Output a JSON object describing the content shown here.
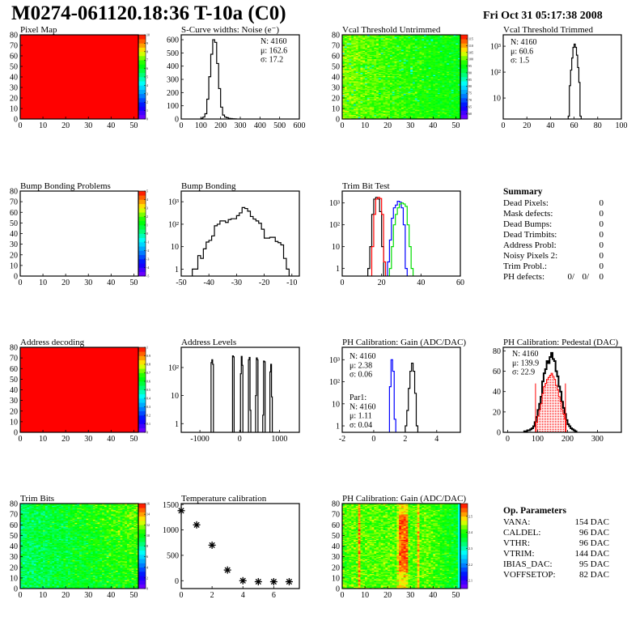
{
  "header": {
    "title": "M0274-061120.18:36 T-10a (C0)",
    "date": "Fri Oct 31 05:17:38 2008"
  },
  "summary": {
    "title": "Summary",
    "rows": [
      {
        "label": "Dead Pixels:",
        "value": "0"
      },
      {
        "label": "Mask defects:",
        "value": "0"
      },
      {
        "label": "Dead Bumps:",
        "value": "0"
      },
      {
        "label": "Dead Trimbits:",
        "value": "0"
      },
      {
        "label": "Address Probl:",
        "value": "0"
      },
      {
        "label": "Noisy Pixels 2:",
        "value": "0"
      },
      {
        "label": "Trim Probl.:",
        "value": "0"
      }
    ],
    "ph_defects": {
      "label": "PH defects:",
      "values": [
        {
          "text": "0/",
          "color": "#000000"
        },
        {
          "text": "0/",
          "color": "#ff0000"
        },
        {
          "text": "0",
          "color": "#0000ff"
        }
      ]
    }
  },
  "op_parameters": {
    "title": "Op. Parameters",
    "rows": [
      {
        "label": "VANA:",
        "value": "154 DAC"
      },
      {
        "label": "CALDEL:",
        "value": "96 DAC"
      },
      {
        "label": "VTHR:",
        "value": "96 DAC"
      },
      {
        "label": "VTRIM:",
        "value": "144 DAC"
      },
      {
        "label": "IBIAS_DAC:",
        "value": "95 DAC"
      },
      {
        "label": "VOFFSETOP:",
        "value": "82 DAC"
      }
    ]
  },
  "chart_data": [
    {
      "type": "heatmap",
      "title": "Pixel Map",
      "xlim": [
        0,
        52
      ],
      "ylim": [
        0,
        80
      ],
      "xticks": [
        0,
        10,
        20,
        30,
        40,
        50
      ],
      "yticks": [
        0,
        10,
        20,
        30,
        40,
        50,
        60,
        70,
        80
      ],
      "zlim": [
        0,
        10
      ],
      "zticks": [
        0,
        1,
        2,
        3,
        4,
        5,
        6,
        7,
        8,
        9,
        10
      ],
      "fill": "uniform",
      "value": 10
    },
    {
      "type": "bar",
      "title": "S-Curve widths: Noise (e⁻)",
      "xlim": [
        0,
        600
      ],
      "ylim": [
        0,
        637
      ],
      "xticks": [
        0,
        100,
        200,
        300,
        400,
        500,
        600
      ],
      "yticks": [
        0,
        100,
        200,
        300,
        400,
        500,
        600
      ],
      "series": [
        {
          "color": "#000000",
          "bin_start": 100,
          "bin_width": 10,
          "values": [
            5,
            15,
            40,
            150,
            320,
            490,
            600,
            580,
            420,
            230,
            90,
            30,
            15,
            10,
            5,
            3,
            2,
            1
          ]
        }
      ],
      "stats": [
        {
          "text": "N: 4160",
          "color": "#000000"
        },
        {
          "text": "μ: 162.6",
          "color": "#000000"
        },
        {
          "text": "σ: 17.2",
          "color": "#000000"
        }
      ]
    },
    {
      "type": "heatmap",
      "title": "Vcal Threshold Untrimmed",
      "xlim": [
        0,
        52
      ],
      "ylim": [
        0,
        80
      ],
      "xticks": [
        0,
        10,
        20,
        30,
        40,
        50
      ],
      "yticks": [
        0,
        10,
        20,
        30,
        40,
        50,
        60,
        70,
        80
      ],
      "zlim": [
        56,
        118
      ],
      "zticks": [
        60,
        65,
        70,
        75,
        80,
        85,
        90,
        95,
        100,
        105,
        110,
        115
      ],
      "fill": "noise"
    },
    {
      "type": "bar",
      "title": "Vcal Threshold Trimmed",
      "log_y": true,
      "xlim": [
        0,
        100
      ],
      "ylim": [
        1.55,
        2750
      ],
      "xticks": [
        0,
        20,
        40,
        60,
        80,
        100
      ],
      "yticks": [
        10,
        100,
        1000
      ],
      "ytick_labels": [
        "10",
        "10²",
        "10³"
      ],
      "series": [
        {
          "color": "#000000",
          "bin_start": 55,
          "bin_width": 1,
          "values": [
            2,
            30,
            120,
            350,
            900,
            1200,
            900,
            450,
            150,
            40,
            2
          ]
        }
      ],
      "stats": [
        {
          "text": "N: 4160",
          "color": "#000000"
        },
        {
          "text": "μ: 60.6",
          "color": "#000000"
        },
        {
          "text": "σ:  1.5",
          "color": "#000000"
        }
      ]
    },
    {
      "type": "heatmap",
      "title": "Bump Bonding Problems",
      "xlim": [
        0,
        52
      ],
      "ylim": [
        0,
        80
      ],
      "xticks": [
        0,
        10,
        20,
        30,
        40,
        50
      ],
      "yticks": [
        0,
        10,
        20,
        30,
        40,
        50,
        60,
        70,
        80
      ],
      "zlim": [
        -5,
        5
      ],
      "zticks": [
        -5,
        -4,
        -3,
        -2,
        -1,
        0,
        1,
        2,
        3,
        4,
        5
      ],
      "fill": "empty"
    },
    {
      "type": "bar",
      "title": "Bump Bonding",
      "log_y": true,
      "xlim": [
        -50,
        -7.3
      ],
      "ylim": [
        0.49,
        2990
      ],
      "xticks": [
        -50,
        -40,
        -30,
        -20,
        -10
      ],
      "yticks": [
        1,
        10,
        100,
        1000
      ],
      "ytick_labels": [
        "1",
        "10",
        "10²",
        "10³"
      ],
      "series": [
        {
          "color": "#000000",
          "bin_start": -46,
          "bin_width": 1,
          "values": [
            1,
            1,
            4,
            3,
            8,
            16,
            19,
            30,
            85,
            100,
            140,
            140,
            120,
            160,
            175,
            175,
            240,
            320,
            550,
            500,
            380,
            220,
            170,
            140,
            110,
            60,
            24,
            24,
            26,
            26,
            17,
            15,
            12,
            3,
            1
          ]
        }
      ]
    },
    {
      "type": "bar",
      "title": "Trim Bit Test",
      "log_y": true,
      "xlim": [
        0,
        60
      ],
      "ylim": [
        0.45,
        3500
      ],
      "xticks": [
        0,
        20,
        40,
        60
      ],
      "yticks": [
        1,
        10,
        100,
        1000
      ],
      "ytick_labels": [
        "1",
        "10",
        "10²",
        "10³"
      ],
      "series": [
        {
          "color": "#000000",
          "bin_start": 13,
          "bin_width": 1,
          "values": [
            1,
            10,
            300,
            1500,
            1800,
            1500,
            400,
            10
          ]
        },
        {
          "color": "#ff0000",
          "bin_start": 15,
          "bin_width": 1,
          "values": [
            10,
            300,
            1500,
            1800,
            1600,
            300,
            2
          ]
        },
        {
          "color": "#0000ff",
          "bin_start": 23,
          "bin_width": 1,
          "values": [
            2,
            20,
            200,
            600,
            800,
            1200,
            1100,
            600,
            100,
            1
          ]
        },
        {
          "color": "#00dd00",
          "bin_start": 24,
          "bin_width": 1,
          "values": [
            1,
            10,
            100,
            300,
            600,
            900,
            1000,
            900,
            700,
            100,
            10,
            1
          ]
        }
      ]
    },
    {
      "type": "heatmap",
      "title": "Address decoding",
      "xlim": [
        0,
        52
      ],
      "ylim": [
        0,
        80
      ],
      "xticks": [
        0,
        10,
        20,
        30,
        40,
        50
      ],
      "yticks": [
        0,
        10,
        20,
        30,
        40,
        50,
        60,
        70,
        80
      ],
      "zlim": [
        0,
        1
      ],
      "zticks": [
        0,
        0.1,
        0.2,
        0.3,
        0.4,
        0.5,
        0.6,
        0.7,
        0.8,
        0.9,
        1
      ],
      "fill": "uniform",
      "value": 1
    },
    {
      "type": "bar",
      "title": "Address Levels",
      "log_y": true,
      "xlim": [
        -1470,
        1500
      ],
      "ylim": [
        0.49,
        525
      ],
      "xticks": [
        -1000,
        0,
        1000
      ],
      "yticks": [
        1,
        10,
        100
      ],
      "ytick_labels": [
        "1",
        "10",
        "10²"
      ],
      "series": [
        {
          "color": "#000000",
          "bin_width": 20,
          "bins": [
            [
              -720,
              150
            ],
            [
              -700,
              190
            ],
            [
              -680,
              130
            ],
            [
              -180,
              260
            ],
            [
              -160,
              240
            ],
            [
              20,
              60
            ],
            [
              40,
              250
            ],
            [
              60,
              120
            ],
            [
              220,
              190
            ],
            [
              240,
              230
            ],
            [
              260,
              3
            ],
            [
              400,
              10
            ],
            [
              420,
              220
            ],
            [
              440,
              190
            ],
            [
              580,
              2
            ],
            [
              600,
              170
            ],
            [
              620,
              160
            ],
            [
              760,
              70
            ],
            [
              780,
              130
            ],
            [
              800,
              9
            ]
          ]
        }
      ]
    },
    {
      "type": "bar",
      "title": "PH Calibration: Gain (ADC/DAC)",
      "log_y": true,
      "xlim": [
        -2,
        5.5
      ],
      "ylim": [
        0.51,
        3650
      ],
      "xticks": [
        -2,
        0,
        2,
        4
      ],
      "yticks": [
        1,
        10,
        100,
        1000
      ],
      "ytick_labels": [
        "1",
        "10",
        "10²",
        "10³"
      ],
      "series": [
        {
          "color": "#000000",
          "bin_start": 2.0,
          "bin_width": 0.1,
          "values": [
            1,
            5,
            50,
            300,
            700,
            300,
            30,
            1
          ]
        },
        {
          "color": "#0000ff",
          "bin_start": 1.0,
          "bin_width": 0.1,
          "values": [
            60,
            1000,
            300,
            2
          ]
        }
      ],
      "stats": [
        {
          "text": "N: 4160",
          "color": "#000000"
        },
        {
          "text": "μ: 2.38",
          "color": "#000000"
        },
        {
          "text": "σ: 0.06",
          "color": "#000000"
        }
      ],
      "stats2": [
        {
          "text": "Par1:",
          "color": "#0000ff"
        },
        {
          "text": "N: 4160",
          "color": "#0000ff"
        },
        {
          "text": "μ: 1.11",
          "color": "#0000ff"
        },
        {
          "text": "σ: 0.04",
          "color": "#0000ff"
        }
      ]
    },
    {
      "type": "bar",
      "title": "PH Calibration: Pedestal (DAC)",
      "xlim": [
        -15,
        380
      ],
      "ylim": [
        0,
        83.5
      ],
      "xticks": [
        0,
        100,
        200,
        300
      ],
      "yticks": [
        0,
        20,
        40,
        60,
        80
      ],
      "series": [
        {
          "color": "#000000",
          "bin_start": 55,
          "bin_width": 5,
          "values": [
            1,
            1,
            2,
            2,
            3,
            4,
            6,
            10,
            15,
            22,
            28,
            35,
            50,
            58,
            62,
            70,
            68,
            74,
            78,
            72,
            70,
            60,
            55,
            45,
            40,
            30,
            24,
            18,
            12,
            8,
            6,
            4,
            3,
            2,
            1
          ]
        },
        {
          "color": "#ff0000",
          "filled": true,
          "bin_start": 95,
          "bin_width": 5,
          "values": [
            10,
            16,
            22,
            28,
            38,
            45,
            48,
            52,
            54,
            56,
            58,
            55,
            52,
            46,
            42,
            35,
            30,
            22,
            18,
            13
          ]
        }
      ],
      "cut_lines": {
        "color": "#ff0000",
        "x": [
          93,
          193
        ],
        "height": 48
      },
      "stats": [
        {
          "text": "N: 4160",
          "color": "#000000"
        },
        {
          "text": "μ: 139.9",
          "color": "#ff0000"
        },
        {
          "text": "σ: 22.9",
          "color": "#ff0000"
        }
      ]
    },
    {
      "type": "heatmap",
      "title": "Trim Bits",
      "xlim": [
        0,
        52
      ],
      "ylim": [
        0,
        80
      ],
      "xticks": [
        0,
        10,
        20,
        30,
        40,
        50
      ],
      "yticks": [
        0,
        10,
        20,
        30,
        40,
        50,
        60,
        70,
        80
      ],
      "zlim": [
        0,
        16
      ],
      "zticks": [
        0,
        2,
        4,
        6,
        8,
        10,
        12,
        14,
        16
      ],
      "fill": "noise"
    },
    {
      "type": "scatter",
      "title": "Temperature calibration",
      "marker": "star",
      "xlim": [
        0,
        7.66
      ],
      "ylim": [
        -155,
        1520
      ],
      "xticks": [
        0,
        2,
        4,
        6
      ],
      "yticks": [
        0,
        500,
        1000,
        1500
      ],
      "x": [
        0,
        1,
        2,
        3,
        4,
        5,
        6,
        7
      ],
      "y": [
        1380,
        1100,
        700,
        210,
        0,
        -20,
        -20,
        -20
      ]
    },
    {
      "type": "heatmap",
      "title": "PH Calibration: Gain (ADC/DAC)",
      "xlim": [
        0,
        52
      ],
      "ylim": [
        0,
        80
      ],
      "xticks": [
        0,
        10,
        20,
        30,
        40,
        50
      ],
      "yticks": [
        0,
        10,
        20,
        30,
        40,
        50,
        60,
        70,
        80
      ],
      "zlim": [
        2.05,
        2.58
      ],
      "zticks": [
        2.1,
        2.2,
        2.3,
        2.4,
        2.5
      ],
      "fill": "noise"
    }
  ]
}
